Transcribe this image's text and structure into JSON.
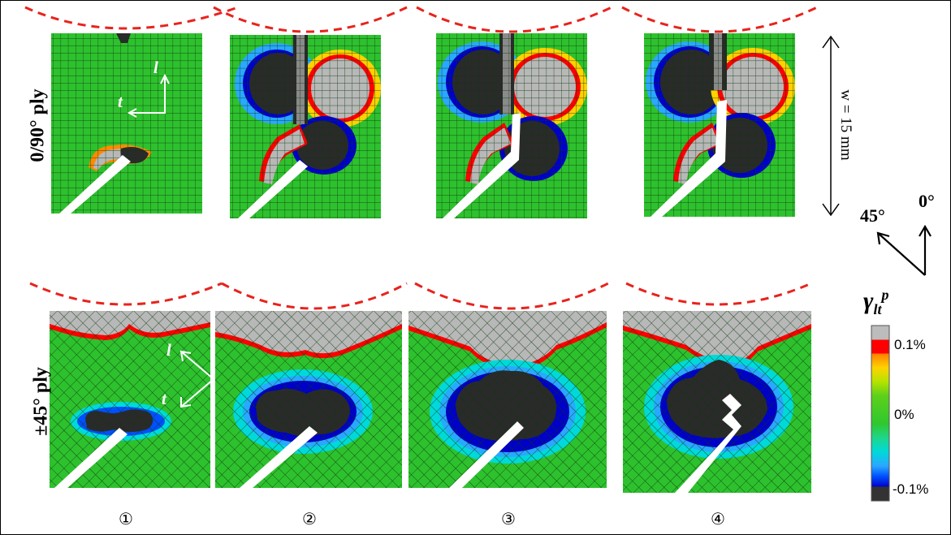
{
  "rows": {
    "top_label": "0/90° ply",
    "bottom_label": "±45° ply"
  },
  "steps": [
    "①",
    "②",
    "③",
    "④"
  ],
  "axis_letters": {
    "l": "l",
    "t": "t"
  },
  "width_label": "w = 15 mm",
  "angles": {
    "zero": "0°",
    "fortyfive": "45°"
  },
  "legend": {
    "title_main": "γ",
    "title_sub": "lt",
    "title_sup": "p",
    "ticks": [
      "0.1%",
      "0%",
      "-0.1%"
    ],
    "colors": [
      "#bcbcbc",
      "#ff0000",
      "#ff7f00",
      "#ffd200",
      "#b6e300",
      "#5ed01a",
      "#2ec82e",
      "#1fd68a",
      "#00d9d9",
      "#29a8ff",
      "#0050ff",
      "#0000c8",
      "#333333"
    ]
  },
  "colors": {
    "mesh_green": "#2ec12e",
    "damaged_grey": "#b8b8b8",
    "negative_dark": "#2a2a2a",
    "dashed_red": "#e8231d"
  }
}
